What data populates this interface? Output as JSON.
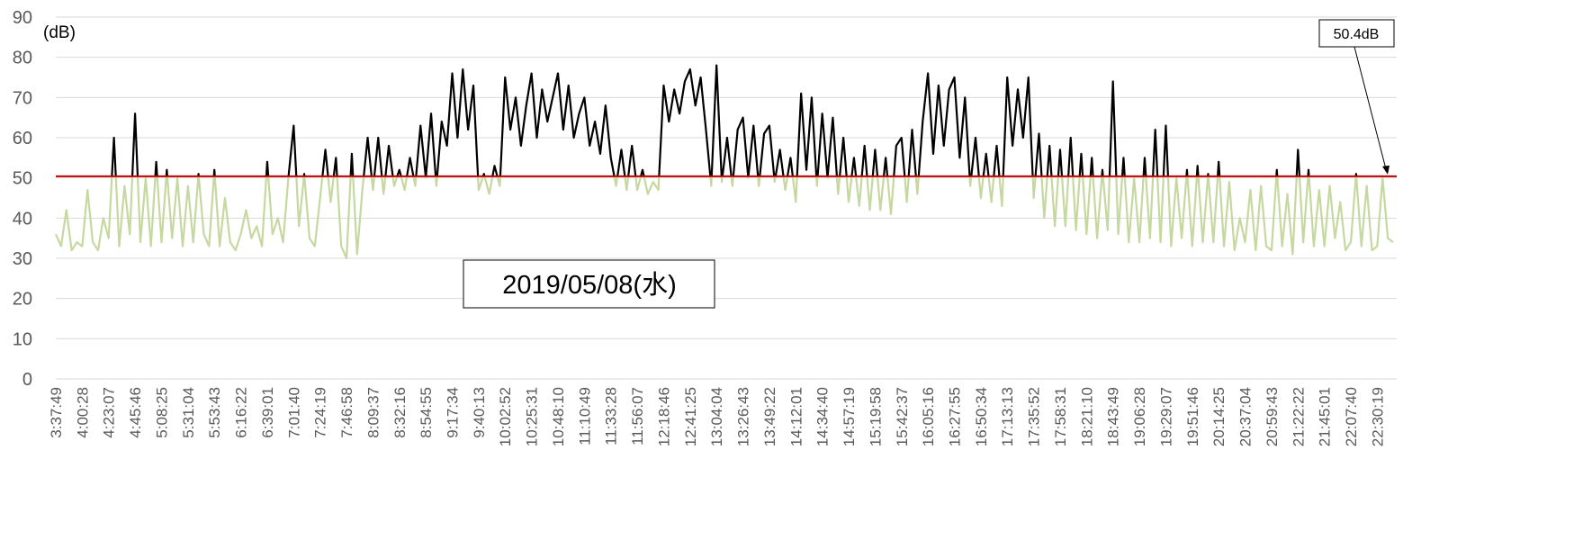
{
  "chart_data": {
    "type": "line",
    "title": "2019/05/08(水)",
    "y_label": "(dB)",
    "ylim": [
      0,
      90
    ],
    "yticks": [
      0,
      10,
      20,
      30,
      40,
      50,
      60,
      70,
      80,
      90
    ],
    "grid": true,
    "reference_line": {
      "value": 50.4,
      "label": "50.4dB",
      "color": "#c00000"
    },
    "categories": [
      "3:37:49",
      null,
      null,
      null,
      null,
      "4:00:28",
      null,
      null,
      null,
      null,
      "4:23:07",
      null,
      null,
      null,
      null,
      "4:45:46",
      null,
      null,
      null,
      null,
      "5:08:25",
      null,
      null,
      null,
      null,
      "5:31:04",
      null,
      null,
      null,
      null,
      "5:53:43",
      null,
      null,
      null,
      null,
      "6:16:22",
      null,
      null,
      null,
      null,
      "6:39:01",
      null,
      null,
      null,
      null,
      "7:01:40",
      null,
      null,
      null,
      null,
      "7:24:19",
      null,
      null,
      null,
      null,
      "7:46:58",
      null,
      null,
      null,
      null,
      "8:09:37",
      null,
      null,
      null,
      null,
      "8:32:16",
      null,
      null,
      null,
      null,
      "8:54:55",
      null,
      null,
      null,
      null,
      "9:17:34",
      null,
      null,
      null,
      null,
      "9:40:13",
      null,
      null,
      null,
      null,
      "10:02:52",
      null,
      null,
      null,
      null,
      "10:25:31",
      null,
      null,
      null,
      null,
      "10:48:10",
      null,
      null,
      null,
      null,
      "11:10:49",
      null,
      null,
      null,
      null,
      "11:33:28",
      null,
      null,
      null,
      null,
      "11:56:07",
      null,
      null,
      null,
      null,
      "12:18:46",
      null,
      null,
      null,
      null,
      "12:41:25",
      null,
      null,
      null,
      null,
      "13:04:04",
      null,
      null,
      null,
      null,
      "13:26:43",
      null,
      null,
      null,
      null,
      "13:49:22",
      null,
      null,
      null,
      null,
      "14:12:01",
      null,
      null,
      null,
      null,
      "14:34:40",
      null,
      null,
      null,
      null,
      "14:57:19",
      null,
      null,
      null,
      null,
      "15:19:58",
      null,
      null,
      null,
      null,
      "15:42:37",
      null,
      null,
      null,
      null,
      "16:05:16",
      null,
      null,
      null,
      null,
      "16:27:55",
      null,
      null,
      null,
      null,
      "16:50:34",
      null,
      null,
      null,
      null,
      "17:13:13",
      null,
      null,
      null,
      null,
      "17:35:52",
      null,
      null,
      null,
      null,
      "17:58:31",
      null,
      null,
      null,
      null,
      "18:21:10",
      null,
      null,
      null,
      null,
      "18:43:49",
      null,
      null,
      null,
      null,
      "19:06:28",
      null,
      null,
      null,
      null,
      "19:29:07",
      null,
      null,
      null,
      null,
      "19:51:46",
      null,
      null,
      null,
      null,
      "20:14:25",
      null,
      null,
      null,
      null,
      "20:37:04",
      null,
      null,
      null,
      null,
      "20:59:43",
      null,
      null,
      null,
      null,
      "21:22:22",
      null,
      null,
      null,
      null,
      "21:45:01",
      null,
      null,
      null,
      null,
      "22:07:40",
      null,
      null,
      null,
      null,
      "22:30:19",
      null,
      null,
      null
    ],
    "series": [
      {
        "color_above": "#000000",
        "color_below": "#c5d89f",
        "values": [
          36,
          33,
          42,
          32,
          34,
          33,
          47,
          34,
          32,
          40,
          35,
          60,
          33,
          48,
          36,
          66,
          34,
          50,
          33,
          54,
          34,
          52,
          35,
          50,
          33,
          48,
          34,
          51,
          36,
          33,
          52,
          33,
          45,
          34,
          32,
          36,
          42,
          35,
          38,
          33,
          54,
          36,
          40,
          34,
          50,
          63,
          38,
          51,
          35,
          33,
          45,
          57,
          44,
          55,
          33,
          30,
          56,
          31,
          47,
          60,
          47,
          60,
          46,
          58,
          48,
          52,
          47,
          55,
          48,
          63,
          50,
          66,
          48,
          64,
          58,
          76,
          60,
          77,
          62,
          73,
          47,
          51,
          46,
          53,
          48,
          75,
          62,
          70,
          58,
          68,
          76,
          60,
          72,
          64,
          70,
          76,
          62,
          73,
          60,
          66,
          70,
          58,
          64,
          56,
          68,
          55,
          48,
          57,
          47,
          58,
          47,
          52,
          46,
          49,
          47,
          73,
          64,
          72,
          66,
          74,
          77,
          68,
          75,
          62,
          48,
          78,
          49,
          60,
          48,
          62,
          65,
          50,
          63,
          48,
          61,
          63,
          49,
          57,
          47,
          55,
          44,
          71,
          52,
          70,
          48,
          66,
          50,
          65,
          46,
          60,
          44,
          55,
          43,
          58,
          42,
          57,
          42,
          55,
          41,
          58,
          60,
          44,
          62,
          46,
          64,
          76,
          56,
          73,
          58,
          72,
          75,
          55,
          70,
          48,
          60,
          45,
          56,
          44,
          58,
          43,
          75,
          58,
          72,
          60,
          75,
          45,
          61,
          40,
          58,
          38,
          57,
          38,
          60,
          37,
          56,
          36,
          55,
          35,
          52,
          37,
          74,
          36,
          55,
          34,
          50,
          34,
          55,
          35,
          62,
          34,
          63,
          33,
          50,
          35,
          52,
          33,
          53,
          34,
          51,
          34,
          54,
          33,
          49,
          32,
          40,
          34,
          47,
          32,
          48,
          33,
          32,
          52,
          33,
          46,
          31,
          57,
          34,
          52,
          33,
          47,
          33,
          48,
          35,
          44,
          32,
          34,
          51,
          33,
          48,
          32,
          33,
          50,
          35,
          34
        ]
      }
    ]
  }
}
